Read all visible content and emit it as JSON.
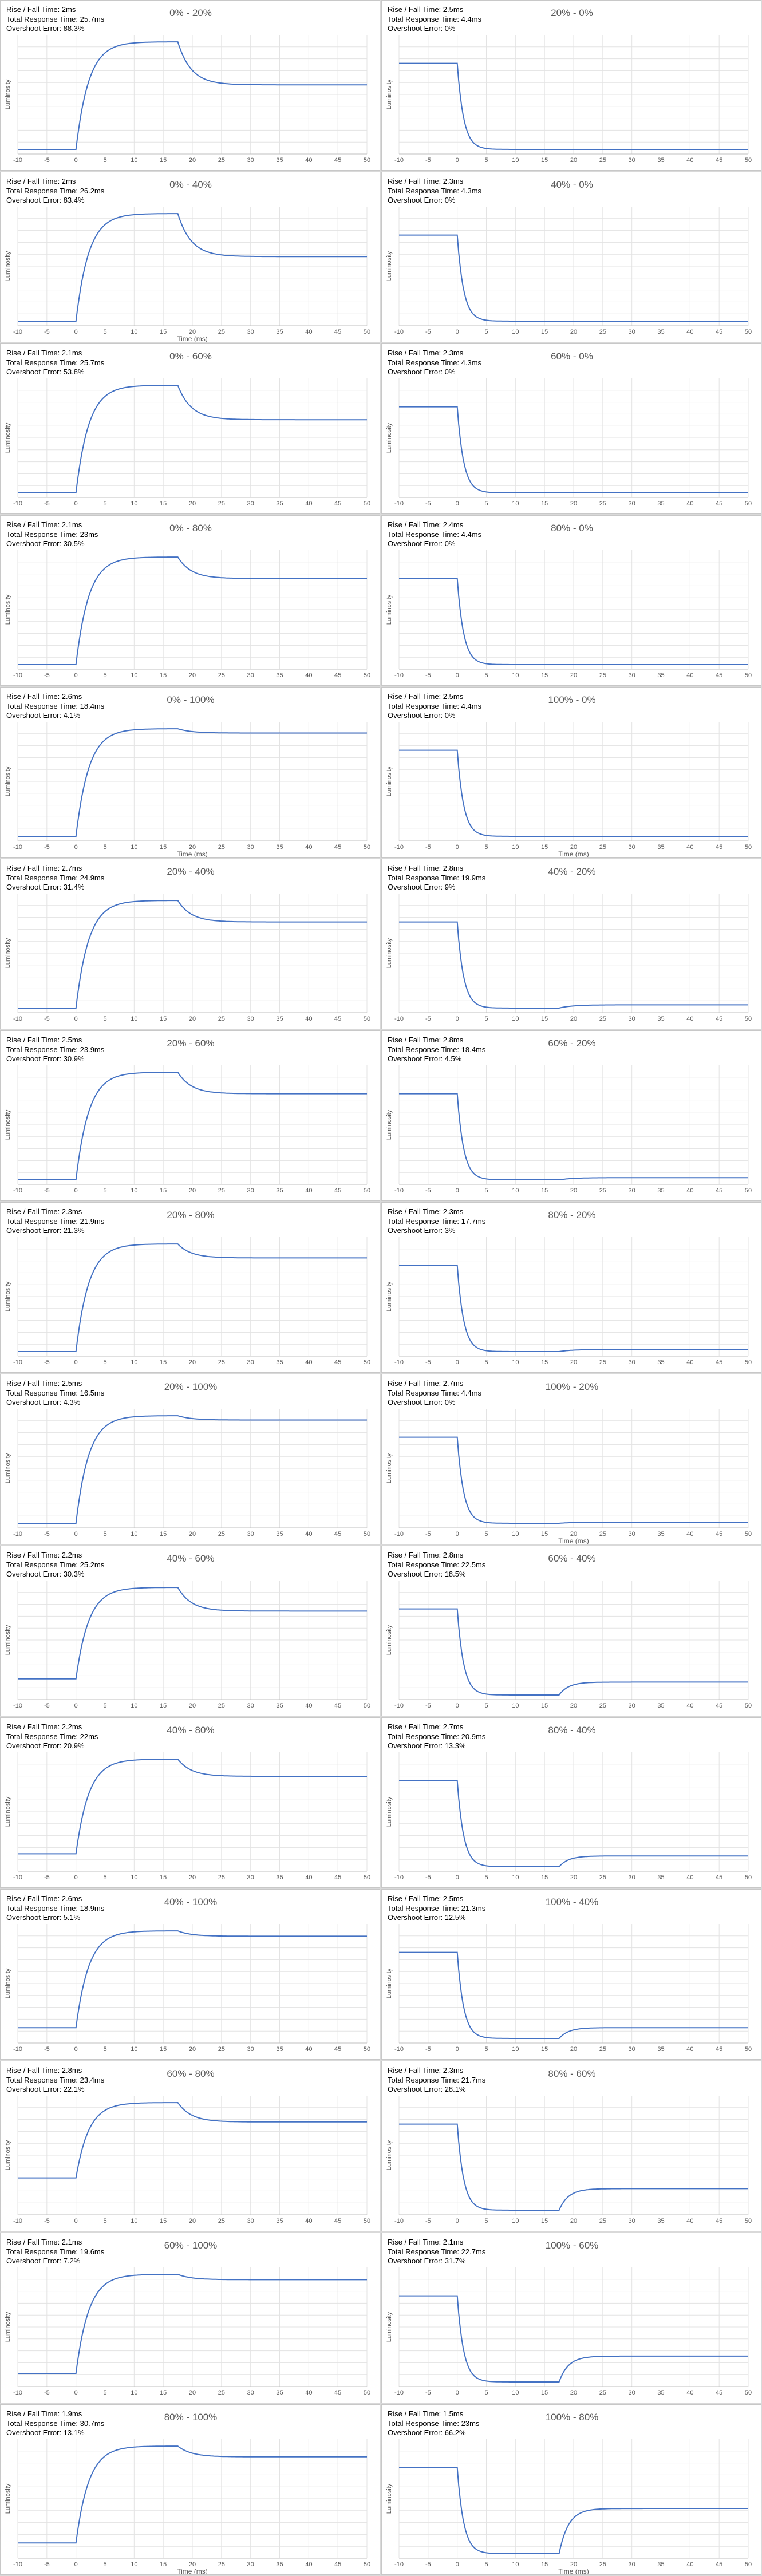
{
  "labels": {
    "rise_fall": "Rise / Fall Time:",
    "total": "Total Response Time:",
    "overshoot": "Overshoot Error:"
  },
  "colors": {
    "line": "#4472c4",
    "grid": "#e3e3e3",
    "axis_text": "#595959",
    "background": "#ffffff",
    "divider": "#d9d9d9"
  },
  "chart_data": [
    {
      "type": "line",
      "title": "0% - 20%",
      "rise_fall": "2ms",
      "total_response": "25.7ms",
      "overshoot": "88.3%",
      "start": 0,
      "peak": 1.0,
      "settle": 0.6,
      "step_at": 0,
      "xlabel": "",
      "ylabel": "Luminosity",
      "xlim": [
        -10,
        50
      ],
      "xticks": [
        -10,
        -5,
        0,
        5,
        10,
        15,
        20,
        25,
        30,
        35,
        40,
        45,
        50
      ]
    },
    {
      "type": "line",
      "title": "20% - 0%",
      "rise_fall": "2.5ms",
      "total_response": "4.4ms",
      "overshoot": "0%",
      "start": 0.8,
      "peak": 0,
      "settle": 0,
      "step_at": 0,
      "xlabel": "",
      "ylabel": "Luminosity",
      "xlim": [
        -10,
        50
      ],
      "xticks": [
        -10,
        -5,
        0,
        5,
        10,
        15,
        20,
        25,
        30,
        35,
        40,
        45,
        50
      ]
    },
    {
      "type": "line",
      "title": "0% - 40%",
      "rise_fall": "2ms",
      "total_response": "26.2ms",
      "overshoot": "83.4%",
      "start": 0,
      "peak": 1.0,
      "settle": 0.6,
      "step_at": 0,
      "xlabel": "Time (ms)",
      "ylabel": "Luminosity",
      "xlim": [
        -10,
        50
      ],
      "xticks": [
        -10,
        -5,
        0,
        5,
        10,
        15,
        20,
        25,
        30,
        35,
        40,
        45,
        50
      ]
    },
    {
      "type": "line",
      "title": "40% - 0%",
      "rise_fall": "2.3ms",
      "total_response": "4.3ms",
      "overshoot": "0%",
      "start": 0.8,
      "peak": 0,
      "settle": 0,
      "step_at": 0,
      "xlabel": "",
      "ylabel": "Luminosity",
      "xlim": [
        -10,
        50
      ],
      "xticks": [
        -10,
        -5,
        0,
        5,
        10,
        15,
        20,
        25,
        30,
        35,
        40,
        45,
        50
      ]
    },
    {
      "type": "line",
      "title": "0% - 60%",
      "rise_fall": "2.1ms",
      "total_response": "25.7ms",
      "overshoot": "53.8%",
      "start": 0,
      "peak": 1.0,
      "settle": 0.68,
      "step_at": 0,
      "xlabel": "",
      "ylabel": "Luminosity",
      "xlim": [
        -10,
        50
      ],
      "xticks": [
        -10,
        -5,
        0,
        5,
        10,
        15,
        20,
        25,
        30,
        35,
        40,
        45,
        50
      ]
    },
    {
      "type": "line",
      "title": "60% - 0%",
      "rise_fall": "2.3ms",
      "total_response": "4.3ms",
      "overshoot": "0%",
      "start": 0.8,
      "peak": 0,
      "settle": 0,
      "step_at": 0,
      "xlabel": "",
      "ylabel": "Luminosity",
      "xlim": [
        -10,
        50
      ],
      "xticks": [
        -10,
        -5,
        0,
        5,
        10,
        15,
        20,
        25,
        30,
        35,
        40,
        45,
        50
      ]
    },
    {
      "type": "line",
      "title": "0% - 80%",
      "rise_fall": "2.1ms",
      "total_response": "23ms",
      "overshoot": "30.5%",
      "start": 0,
      "peak": 1.0,
      "settle": 0.8,
      "step_at": 0,
      "xlabel": "",
      "ylabel": "Luminosity",
      "xlim": [
        -10,
        50
      ],
      "xticks": [
        -10,
        -5,
        0,
        5,
        10,
        15,
        20,
        25,
        30,
        35,
        40,
        45,
        50
      ]
    },
    {
      "type": "line",
      "title": "80% - 0%",
      "rise_fall": "2.4ms",
      "total_response": "4.4ms",
      "overshoot": "0%",
      "start": 0.8,
      "peak": 0,
      "settle": 0,
      "step_at": 0,
      "xlabel": "",
      "ylabel": "Luminosity",
      "xlim": [
        -10,
        50
      ],
      "xticks": [
        -10,
        -5,
        0,
        5,
        10,
        15,
        20,
        25,
        30,
        35,
        40,
        45,
        50
      ]
    },
    {
      "type": "line",
      "title": "0% - 100%",
      "rise_fall": "2.6ms",
      "total_response": "18.4ms",
      "overshoot": "4.1%",
      "start": 0,
      "peak": 1.0,
      "settle": 0.96,
      "step_at": 0,
      "xlabel": "Time (ms)",
      "ylabel": "Luminosity",
      "xlim": [
        -10,
        50
      ],
      "xticks": [
        -10,
        -5,
        0,
        5,
        10,
        15,
        20,
        25,
        30,
        35,
        40,
        45,
        50
      ]
    },
    {
      "type": "line",
      "title": "100% - 0%",
      "rise_fall": "2.5ms",
      "total_response": "4.4ms",
      "overshoot": "0%",
      "start": 0.8,
      "peak": 0,
      "settle": 0,
      "step_at": 0,
      "xlabel": "Time (ms)",
      "ylabel": "Luminosity",
      "xlim": [
        -10,
        50
      ],
      "xticks": [
        -10,
        -5,
        0,
        5,
        10,
        15,
        20,
        25,
        30,
        35,
        40,
        45,
        50
      ]
    },
    {
      "type": "line",
      "title": "20% - 40%",
      "rise_fall": "2.7ms",
      "total_response": "24.9ms",
      "overshoot": "31.4%",
      "start": 0,
      "peak": 1.0,
      "settle": 0.8,
      "step_at": 0,
      "xlabel": "",
      "ylabel": "Luminosity",
      "xlim": [
        -10,
        50
      ],
      "xticks": [
        -10,
        -5,
        0,
        5,
        10,
        15,
        20,
        25,
        30,
        35,
        40,
        45,
        50
      ]
    },
    {
      "type": "line",
      "title": "40% - 20%",
      "rise_fall": "2.8ms",
      "total_response": "19.9ms",
      "overshoot": "9%",
      "start": 0.8,
      "peak": 0,
      "settle": 0.03,
      "step_at": 0,
      "xlabel": "",
      "ylabel": "Luminosity",
      "xlim": [
        -10,
        50
      ],
      "xticks": [
        -10,
        -5,
        0,
        5,
        10,
        15,
        20,
        25,
        30,
        35,
        40,
        45,
        50
      ]
    },
    {
      "type": "line",
      "title": "20% - 60%",
      "rise_fall": "2.5ms",
      "total_response": "23.9ms",
      "overshoot": "30.9%",
      "start": 0,
      "peak": 1.0,
      "settle": 0.8,
      "step_at": 0,
      "xlabel": "",
      "ylabel": "Luminosity",
      "xlim": [
        -10,
        50
      ],
      "xticks": [
        -10,
        -5,
        0,
        5,
        10,
        15,
        20,
        25,
        30,
        35,
        40,
        45,
        50
      ]
    },
    {
      "type": "line",
      "title": "60% - 20%",
      "rise_fall": "2.8ms",
      "total_response": "18.4ms",
      "overshoot": "4.5%",
      "start": 0.8,
      "peak": 0,
      "settle": 0.02,
      "step_at": 0,
      "xlabel": "",
      "ylabel": "Luminosity",
      "xlim": [
        -10,
        50
      ],
      "xticks": [
        -10,
        -5,
        0,
        5,
        10,
        15,
        20,
        25,
        30,
        35,
        40,
        45,
        50
      ]
    },
    {
      "type": "line",
      "title": "20% - 80%",
      "rise_fall": "2.3ms",
      "total_response": "21.9ms",
      "overshoot": "21.3%",
      "start": 0,
      "peak": 1.0,
      "settle": 0.87,
      "step_at": 0,
      "xlabel": "",
      "ylabel": "Luminosity",
      "xlim": [
        -10,
        50
      ],
      "xticks": [
        -10,
        -5,
        0,
        5,
        10,
        15,
        20,
        25,
        30,
        35,
        40,
        45,
        50
      ]
    },
    {
      "type": "line",
      "title": "80% - 20%",
      "rise_fall": "2.3ms",
      "total_response": "17.7ms",
      "overshoot": "3%",
      "start": 0.8,
      "peak": 0,
      "settle": 0.02,
      "step_at": 0,
      "xlabel": "",
      "ylabel": "Luminosity",
      "xlim": [
        -10,
        50
      ],
      "xticks": [
        -10,
        -5,
        0,
        5,
        10,
        15,
        20,
        25,
        30,
        35,
        40,
        45,
        50
      ]
    },
    {
      "type": "line",
      "title": "20% - 100%",
      "rise_fall": "2.5ms",
      "total_response": "16.5ms",
      "overshoot": "4.3%",
      "start": 0,
      "peak": 1.0,
      "settle": 0.96,
      "step_at": 0,
      "xlabel": "",
      "ylabel": "Luminosity",
      "xlim": [
        -10,
        50
      ],
      "xticks": [
        -10,
        -5,
        0,
        5,
        10,
        15,
        20,
        25,
        30,
        35,
        40,
        45,
        50
      ]
    },
    {
      "type": "line",
      "title": "100% - 20%",
      "rise_fall": "2.7ms",
      "total_response": "4.4ms",
      "overshoot": "0%",
      "start": 0.8,
      "peak": 0,
      "settle": 0.01,
      "step_at": 0,
      "xlabel": "Time (ms)",
      "ylabel": "Luminosity",
      "xlim": [
        -10,
        50
      ],
      "xticks": [
        -10,
        -5,
        0,
        5,
        10,
        15,
        20,
        25,
        30,
        35,
        40,
        45,
        50
      ]
    },
    {
      "type": "line",
      "title": "40% - 60%",
      "rise_fall": "2.2ms",
      "total_response": "25.2ms",
      "overshoot": "30.3%",
      "start": 0.15,
      "peak": 1.0,
      "settle": 0.78,
      "step_at": 0,
      "xlabel": "",
      "ylabel": "Luminosity",
      "xlim": [
        -10,
        50
      ],
      "xticks": [
        -10,
        -5,
        0,
        5,
        10,
        15,
        20,
        25,
        30,
        35,
        40,
        45,
        50
      ]
    },
    {
      "type": "line",
      "title": "60% - 40%",
      "rise_fall": "2.8ms",
      "total_response": "22.5ms",
      "overshoot": "18.5%",
      "start": 0.8,
      "peak": 0,
      "settle": 0.12,
      "step_at": 0,
      "xlabel": "",
      "ylabel": "Luminosity",
      "xlim": [
        -10,
        50
      ],
      "xticks": [
        -10,
        -5,
        0,
        5,
        10,
        15,
        20,
        25,
        30,
        35,
        40,
        45,
        50
      ]
    },
    {
      "type": "line",
      "title": "40% - 80%",
      "rise_fall": "2.2ms",
      "total_response": "22ms",
      "overshoot": "20.9%",
      "start": 0.12,
      "peak": 1.0,
      "settle": 0.84,
      "step_at": 0,
      "xlabel": "",
      "ylabel": "Luminosity",
      "xlim": [
        -10,
        50
      ],
      "xticks": [
        -10,
        -5,
        0,
        5,
        10,
        15,
        20,
        25,
        30,
        35,
        40,
        45,
        50
      ]
    },
    {
      "type": "line",
      "title": "80% - 40%",
      "rise_fall": "2.7ms",
      "total_response": "20.9ms",
      "overshoot": "13.3%",
      "start": 0.8,
      "peak": 0,
      "settle": 0.1,
      "step_at": 0,
      "xlabel": "",
      "ylabel": "Luminosity",
      "xlim": [
        -10,
        50
      ],
      "xticks": [
        -10,
        -5,
        0,
        5,
        10,
        15,
        20,
        25,
        30,
        35,
        40,
        45,
        50
      ]
    },
    {
      "type": "line",
      "title": "40% - 100%",
      "rise_fall": "2.6ms",
      "total_response": "18.9ms",
      "overshoot": "5.1%",
      "start": 0.1,
      "peak": 1.0,
      "settle": 0.95,
      "step_at": 0,
      "xlabel": "",
      "ylabel": "Luminosity",
      "xlim": [
        -10,
        50
      ],
      "xticks": [
        -10,
        -5,
        0,
        5,
        10,
        15,
        20,
        25,
        30,
        35,
        40,
        45,
        50
      ]
    },
    {
      "type": "line",
      "title": "100% - 40%",
      "rise_fall": "2.5ms",
      "total_response": "21.3ms",
      "overshoot": "12.5%",
      "start": 0.8,
      "peak": 0,
      "settle": 0.1,
      "step_at": 0,
      "xlabel": "",
      "ylabel": "Luminosity",
      "xlim": [
        -10,
        50
      ],
      "xticks": [
        -10,
        -5,
        0,
        5,
        10,
        15,
        20,
        25,
        30,
        35,
        40,
        45,
        50
      ]
    },
    {
      "type": "line",
      "title": "60% - 80%",
      "rise_fall": "2.8ms",
      "total_response": "23.4ms",
      "overshoot": "22.1%",
      "start": 0.3,
      "peak": 1.0,
      "settle": 0.82,
      "step_at": 0,
      "xlabel": "",
      "ylabel": "Luminosity",
      "xlim": [
        -10,
        50
      ],
      "xticks": [
        -10,
        -5,
        0,
        5,
        10,
        15,
        20,
        25,
        30,
        35,
        40,
        45,
        50
      ]
    },
    {
      "type": "line",
      "title": "80% - 60%",
      "rise_fall": "2.3ms",
      "total_response": "21.7ms",
      "overshoot": "28.1%",
      "start": 0.8,
      "peak": 0,
      "settle": 0.2,
      "step_at": 0,
      "xlabel": "",
      "ylabel": "Luminosity",
      "xlim": [
        -10,
        50
      ],
      "xticks": [
        -10,
        -5,
        0,
        5,
        10,
        15,
        20,
        25,
        30,
        35,
        40,
        45,
        50
      ]
    },
    {
      "type": "line",
      "title": "60% - 100%",
      "rise_fall": "2.1ms",
      "total_response": "19.6ms",
      "overshoot": "7.2%",
      "start": 0.08,
      "peak": 1.0,
      "settle": 0.95,
      "step_at": 0,
      "xlabel": "",
      "ylabel": "Luminosity",
      "xlim": [
        -10,
        50
      ],
      "xticks": [
        -10,
        -5,
        0,
        5,
        10,
        15,
        20,
        25,
        30,
        35,
        40,
        45,
        50
      ]
    },
    {
      "type": "line",
      "title": "100% - 60%",
      "rise_fall": "2.1ms",
      "total_response": "22.7ms",
      "overshoot": "31.7%",
      "start": 0.8,
      "peak": 0,
      "settle": 0.24,
      "step_at": 0,
      "xlabel": "",
      "ylabel": "Luminosity",
      "xlim": [
        -10,
        50
      ],
      "xticks": [
        -10,
        -5,
        0,
        5,
        10,
        15,
        20,
        25,
        30,
        35,
        40,
        45,
        50
      ]
    },
    {
      "type": "line",
      "title": "80% - 100%",
      "rise_fall": "1.9ms",
      "total_response": "30.7ms",
      "overshoot": "13.1%",
      "start": 0.1,
      "peak": 1.0,
      "settle": 0.9,
      "step_at": 0,
      "xlabel": "Time (ms)",
      "ylabel": "Luminosity",
      "xlim": [
        -10,
        50
      ],
      "xticks": [
        -10,
        -5,
        0,
        5,
        10,
        15,
        20,
        25,
        30,
        35,
        40,
        45,
        50
      ]
    },
    {
      "type": "line",
      "title": "100% - 80%",
      "rise_fall": "1.5ms",
      "total_response": "23ms",
      "overshoot": "66.2%",
      "start": 0.8,
      "peak": 0,
      "settle": 0.42,
      "step_at": 0,
      "xlabel": "Time (ms)",
      "ylabel": "Luminosity",
      "xlim": [
        -10,
        50
      ],
      "xticks": [
        -10,
        -5,
        0,
        5,
        10,
        15,
        20,
        25,
        30,
        35,
        40,
        45,
        50
      ]
    }
  ]
}
